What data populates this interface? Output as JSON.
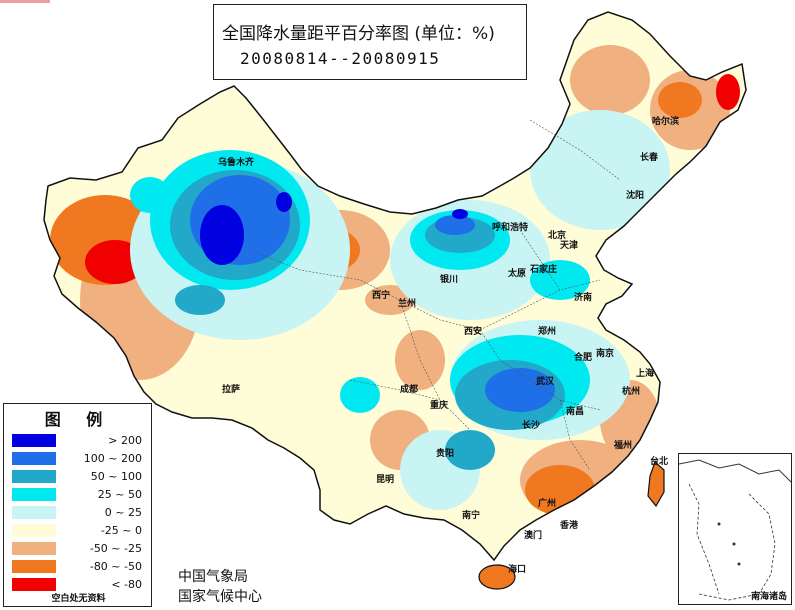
{
  "title": {
    "main": "全国降水量距平百分率图 (单位：%)",
    "period": "20080814--20080915"
  },
  "legend": {
    "title": "图 例",
    "items": [
      {
        "label": "> 200",
        "color": "#0000e0"
      },
      {
        "label": "100 ~ 200",
        "color": "#1e6fe8"
      },
      {
        "label": "50 ~ 100",
        "color": "#22a8c8"
      },
      {
        "label": "25 ~ 50",
        "color": "#00e8f0"
      },
      {
        "label": "0 ~ 25",
        "color": "#c8f4f4"
      },
      {
        "label": "-25 ~ 0",
        "color": "#fffcd8"
      },
      {
        "label": "-50 ~ -25",
        "color": "#f0b080"
      },
      {
        "label": "-80 ~ -50",
        "color": "#f07820"
      },
      {
        "label": "< -80",
        "color": "#f00000"
      }
    ],
    "note": "空白处无资料"
  },
  "agency": {
    "line1": "中国气象局",
    "line2": "国家气候中心"
  },
  "inset": {
    "label": "南海诸岛"
  },
  "cities": {
    "urumqi": "乌鲁木齐",
    "lhasa": "拉萨",
    "xining": "西宁",
    "lanzhou": "兰州",
    "yinchuan": "银川",
    "hohhot": "呼和浩特",
    "beijing": "北京",
    "tianjin": "天津",
    "shijiazhuang": "石家庄",
    "taiyuan": "太原",
    "jinan": "济南",
    "zhengzhou": "郑州",
    "xian": "西安",
    "chengdu": "成都",
    "chongqing": "重庆",
    "wuhan": "武汉",
    "changsha": "长沙",
    "hefei": "合肥",
    "nanjing": "南京",
    "shanghai": "上海",
    "hangzhou": "杭州",
    "nanchang": "南昌",
    "fuzhou": "福州",
    "taipei": "台北",
    "guangzhou": "广州",
    "hongkong": "香港",
    "macau": "澳门",
    "nanning": "南宁",
    "guiyang": "贵阳",
    "kunming": "昆明",
    "haikou": "海口",
    "harbin": "哈尔滨",
    "changchun": "长春",
    "shenyang": "沈阳"
  }
}
